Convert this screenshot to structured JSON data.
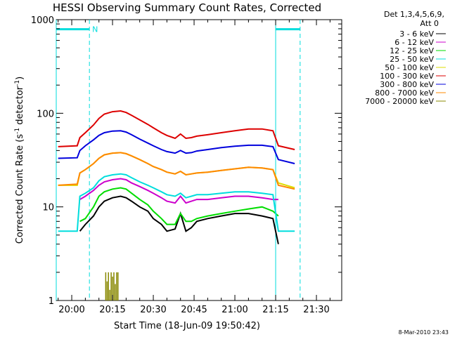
{
  "chart_data": {
    "type": "line",
    "title": "HESSI Observing Summary Count Rates, Corrected",
    "xlabel": "Start Time (18-Jun-09 19:50:42)",
    "ylabel_main": "Corrected Count Rate (s",
    "ylabel_sup1": "-1",
    "ylabel_mid": " detector",
    "ylabel_sup2": "-1",
    "ylabel_end": ")",
    "y_scale": "log",
    "ylim": [
      1,
      1000
    ],
    "xlim_minutes": [
      -5.7,
      99.3
    ],
    "x_ticks": [
      {
        "label": "20:00",
        "minute": 0
      },
      {
        "label": "20:15",
        "minute": 15
      },
      {
        "label": "20:30",
        "minute": 30
      },
      {
        "label": "20:45",
        "minute": 45
      },
      {
        "label": "21:00",
        "minute": 60
      },
      {
        "label": "21:15",
        "minute": 75
      },
      {
        "label": "21:30",
        "minute": 90
      }
    ],
    "y_ticks": [
      {
        "label": "1",
        "value": 1
      },
      {
        "label": "10",
        "value": 10
      },
      {
        "label": "100",
        "value": 100
      },
      {
        "label": "1000",
        "value": 1000
      }
    ],
    "legend_header": [
      "Det 1,3,4,5,6,9,",
      "Att 0"
    ],
    "legend_placement": "right",
    "night_marks": [
      {
        "label": "N",
        "start": -5.7,
        "end": 6.5
      },
      {
        "label": "",
        "start": 75,
        "end": 84
      }
    ],
    "night_lines": [
      -5.7,
      6.5,
      75,
      84
    ],
    "series": [
      {
        "name": "3 - 6 keV",
        "color": "#000000",
        "x": [
          3,
          5,
          8,
          10,
          12,
          15,
          18,
          20,
          22,
          25,
          28,
          30,
          33,
          35,
          38,
          40,
          42,
          44,
          46,
          50,
          55,
          60,
          65,
          70,
          74,
          76
        ],
        "y": [
          5.5,
          6.5,
          8,
          10,
          11.5,
          12.5,
          13,
          12.5,
          11.5,
          10,
          9,
          7.5,
          6.5,
          5.5,
          5.8,
          8.5,
          5.5,
          6,
          7,
          7.5,
          8,
          8.5,
          8.5,
          8,
          7.5,
          4
        ]
      },
      {
        "name": "6 - 12 keV",
        "color": "#cc00cc",
        "x": [
          3,
          5,
          8,
          10,
          12,
          15,
          18,
          20,
          22,
          25,
          28,
          30,
          33,
          35,
          38,
          40,
          42,
          44,
          46,
          50,
          55,
          60,
          65,
          70,
          74,
          76
        ],
        "y": [
          12,
          13,
          15,
          17,
          18.5,
          19.5,
          20,
          19.5,
          18,
          16.5,
          15,
          14,
          12.5,
          11.5,
          11,
          13,
          11,
          11.5,
          12,
          12,
          12.5,
          13,
          13,
          12.5,
          12,
          12
        ]
      },
      {
        "name": "12 - 25 keV",
        "color": "#00dd00",
        "x": [
          3,
          5,
          8,
          10,
          12,
          15,
          18,
          20,
          22,
          25,
          28,
          30,
          33,
          35,
          38,
          40,
          42,
          44,
          46,
          50,
          55,
          60,
          65,
          70,
          74,
          76
        ],
        "y": [
          7,
          7.5,
          10,
          13,
          14.5,
          15.5,
          16,
          15.5,
          14,
          12,
          10.5,
          9,
          7.5,
          6.5,
          6.5,
          8.5,
          7,
          7,
          7.5,
          8,
          8.5,
          9,
          9.5,
          10,
          9,
          8
        ]
      },
      {
        "name": "25 - 50 keV",
        "color": "#00dddd",
        "x": [
          -5,
          2,
          3,
          5,
          8,
          10,
          12,
          15,
          18,
          20,
          22,
          25,
          28,
          30,
          33,
          35,
          38,
          40,
          42,
          44,
          46,
          50,
          55,
          60,
          65,
          70,
          74,
          76,
          82
        ],
        "y": [
          5.5,
          5.5,
          13,
          14,
          16,
          19,
          21,
          22,
          22.5,
          22,
          20.5,
          18.5,
          17,
          16,
          14.5,
          13.5,
          13,
          14,
          12.5,
          13,
          13.5,
          13.5,
          14,
          14.5,
          14.5,
          14,
          13.5,
          5.5,
          5.5
        ]
      },
      {
        "name": "50 - 100 keV",
        "color": "#dddd00",
        "x": [
          -5,
          2,
          3,
          5,
          8,
          10,
          12,
          15,
          18,
          20,
          22,
          25,
          28,
          30,
          33,
          35,
          38,
          40,
          42,
          44,
          46,
          50,
          55,
          60,
          65,
          70,
          74,
          76,
          82
        ],
        "y": [
          17,
          17,
          23,
          25,
          29,
          33,
          36,
          37.5,
          38,
          37,
          35,
          32,
          29,
          27,
          25,
          23.5,
          22.5,
          24,
          22,
          22.5,
          23,
          23.5,
          24.5,
          25.5,
          26.5,
          26,
          25,
          18,
          16
        ]
      },
      {
        "name": "100 - 300 keV",
        "color": "#dd0000",
        "x": [
          -5,
          2,
          3,
          5,
          8,
          10,
          12,
          15,
          18,
          20,
          22,
          25,
          28,
          30,
          33,
          35,
          38,
          40,
          42,
          44,
          46,
          50,
          55,
          60,
          65,
          70,
          74,
          76,
          82
        ],
        "y": [
          44,
          45,
          55,
          62,
          75,
          88,
          98,
          104,
          106,
          102,
          95,
          85,
          76,
          70,
          62,
          58,
          54,
          60,
          54,
          55,
          57,
          59,
          62,
          65,
          68,
          68,
          65,
          45,
          41
        ]
      },
      {
        "name": "300 - 800 keV",
        "color": "#0000dd",
        "x": [
          -5,
          2,
          3,
          5,
          8,
          10,
          12,
          15,
          18,
          20,
          22,
          25,
          28,
          30,
          33,
          35,
          38,
          40,
          42,
          44,
          46,
          50,
          55,
          60,
          65,
          70,
          74,
          76,
          82
        ],
        "y": [
          33,
          33.5,
          40,
          45,
          52,
          58,
          62,
          64.5,
          65,
          63,
          59,
          53,
          48,
          45,
          41,
          39,
          37.5,
          40,
          37.5,
          38,
          39.5,
          41,
          43,
          44.5,
          45.5,
          45.5,
          44,
          32,
          29
        ]
      },
      {
        "name": "800 - 7000 keV",
        "color": "#ff8800",
        "x": [
          -5,
          2,
          3,
          5,
          8,
          10,
          12,
          15,
          18,
          20,
          22,
          25,
          28,
          30,
          33,
          35,
          38,
          40,
          42,
          44,
          46,
          50,
          55,
          60,
          65,
          70,
          74,
          76,
          82
        ],
        "y": [
          17,
          17.5,
          23,
          25,
          29,
          33,
          36,
          37.5,
          38,
          37,
          35,
          32,
          29,
          27,
          25,
          23.5,
          22.5,
          24,
          22,
          22.5,
          23,
          23.5,
          24.5,
          25.5,
          26.5,
          26,
          25,
          17,
          15.5
        ]
      },
      {
        "name": "7000 - 20000 keV",
        "color": "#888800",
        "x": [
          12.5,
          13,
          13.5,
          14,
          14.5,
          15,
          15.5,
          16,
          16.5,
          17
        ],
        "y": [
          2,
          1.6,
          2,
          1.3,
          2,
          1.8,
          2,
          1.5,
          2,
          2
        ]
      }
    ]
  },
  "timestamp": "8-Mar-2010 23:43"
}
